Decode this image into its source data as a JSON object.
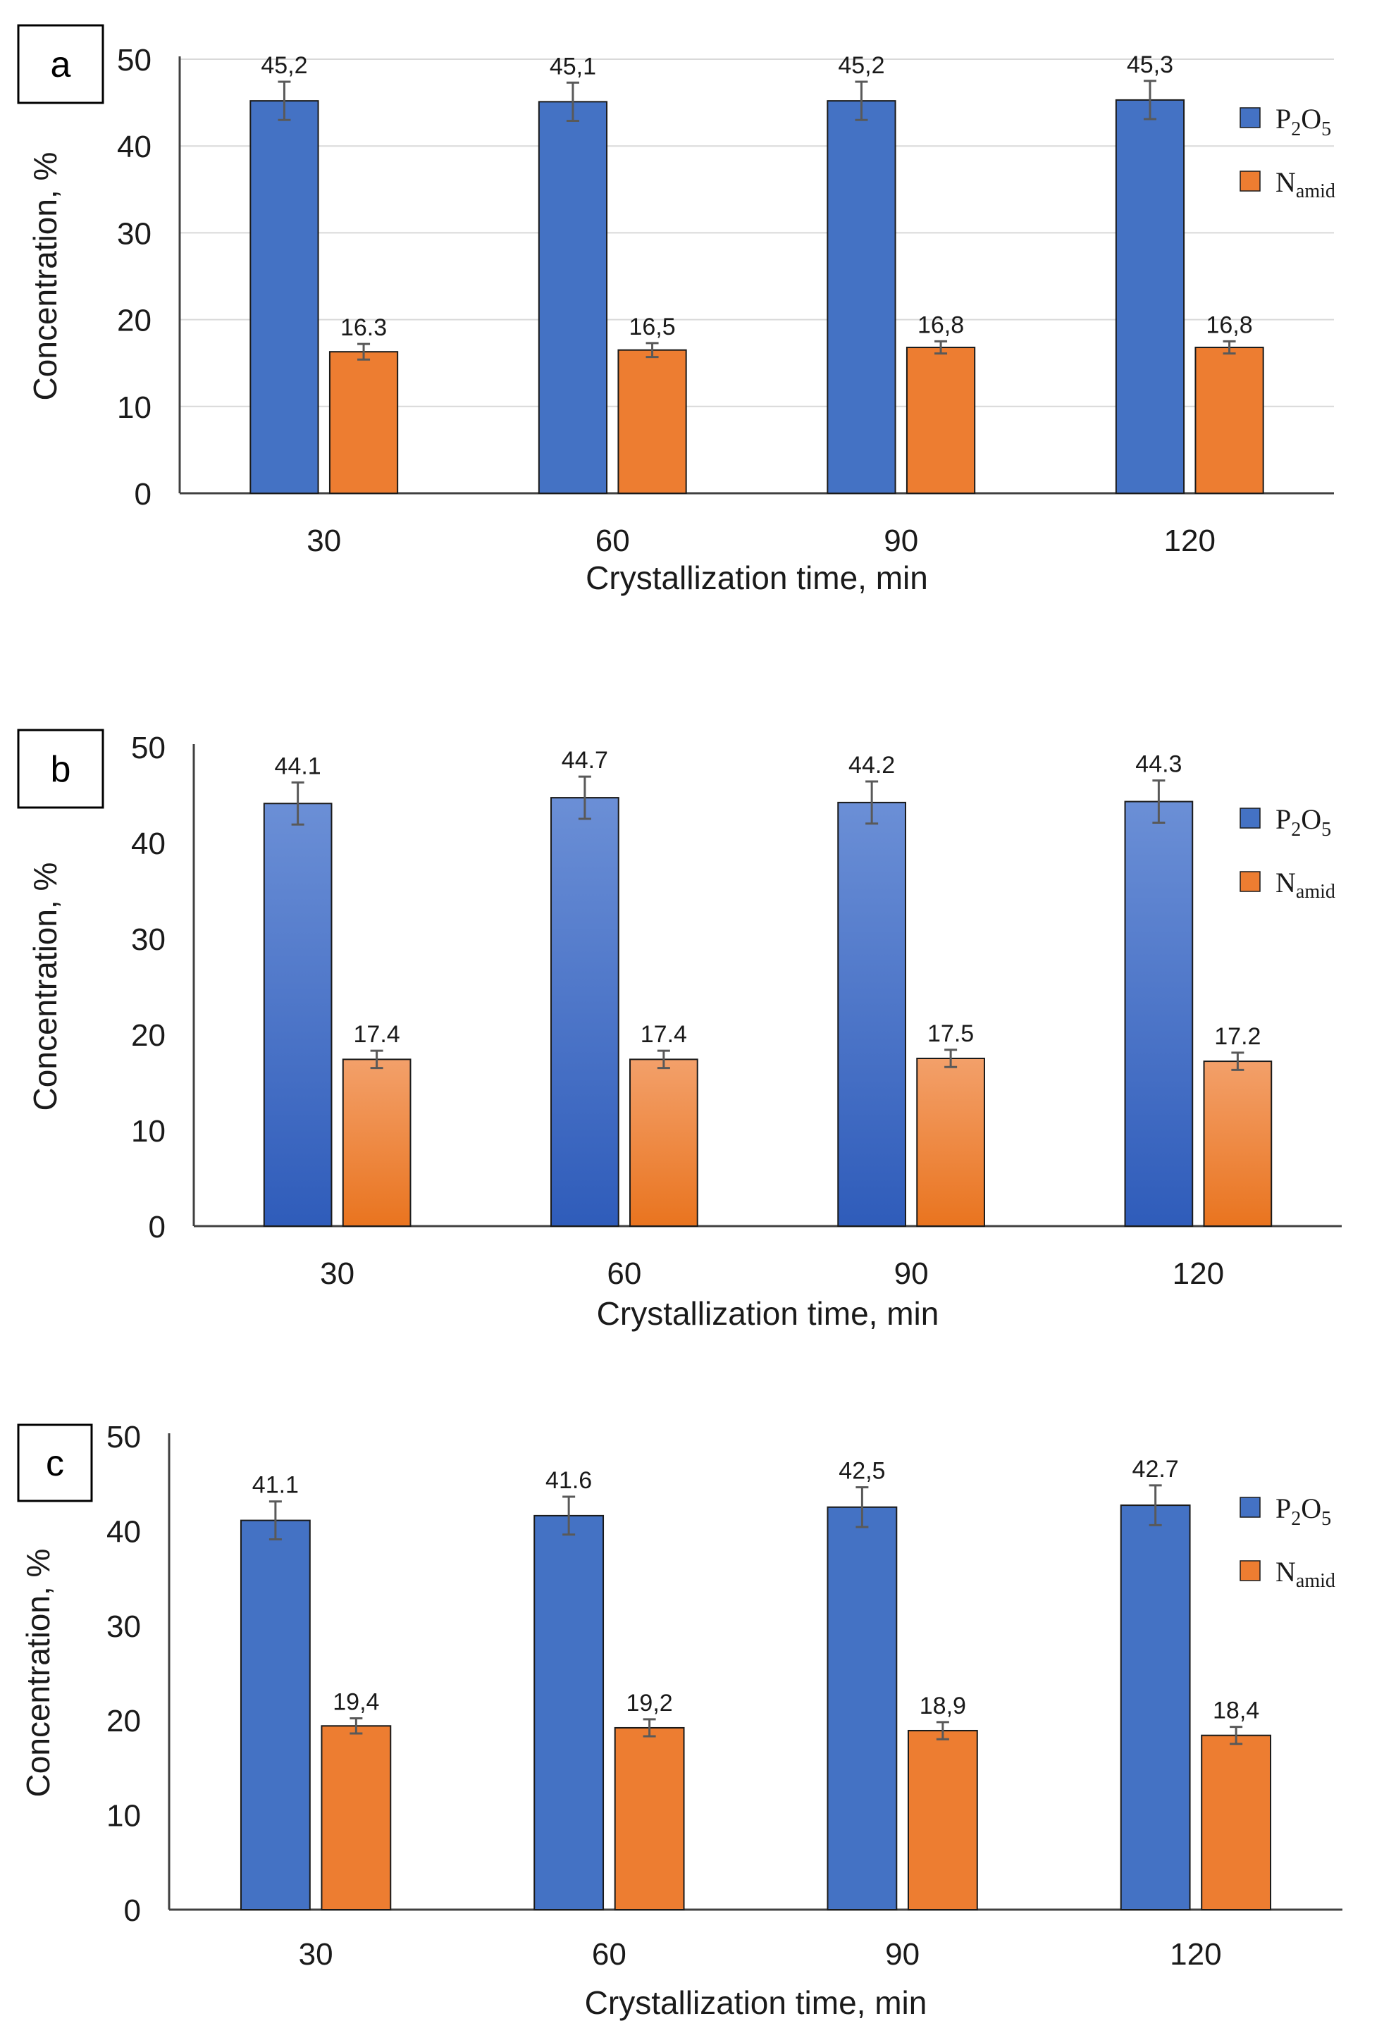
{
  "colors": {
    "p2o5": "#4472C4",
    "namid": "#ED7D31",
    "gridline": "#d9d9d9",
    "axis": "#404040",
    "errorbar": "#595959"
  },
  "chart_data": [
    {
      "panel_label": "a",
      "type": "bar",
      "style": "flat",
      "categories": [
        "30",
        "60",
        "90",
        "120"
      ],
      "xlabel": "Crystallization time, min",
      "ylabel": "Concentration, %",
      "ylim": [
        0,
        50
      ],
      "yticks": [
        "0",
        "10",
        "20",
        "30",
        "40",
        "50"
      ],
      "grid": true,
      "legend_position": "right",
      "series": [
        {
          "key": "p2o5",
          "values": [
            45.2,
            45.1,
            45.2,
            45.3
          ],
          "labels": [
            "45,2",
            "45,1",
            "45,2",
            "45,3"
          ],
          "errors": [
            2.2,
            2.2,
            2.2,
            2.2
          ]
        },
        {
          "key": "namid",
          "values": [
            16.3,
            16.5,
            16.8,
            16.8
          ],
          "labels": [
            "16.3",
            "16,5",
            "16,8",
            "16,8"
          ],
          "errors": [
            0.9,
            0.8,
            0.7,
            0.7
          ]
        }
      ]
    },
    {
      "panel_label": "b",
      "type": "bar",
      "style": "gradient",
      "categories": [
        "30",
        "60",
        "90",
        "120"
      ],
      "xlabel": "Crystallization time, min",
      "ylabel": "Concentration, %",
      "ylim": [
        0,
        50
      ],
      "yticks": [
        "0",
        "10",
        "20",
        "30",
        "40",
        "50"
      ],
      "grid": false,
      "legend_position": "right",
      "series": [
        {
          "key": "p2o5",
          "values": [
            44.1,
            44.7,
            44.2,
            44.3
          ],
          "labels": [
            "44.1",
            "44.7",
            "44.2",
            "44.3"
          ],
          "errors": [
            2.2,
            2.2,
            2.2,
            2.2
          ]
        },
        {
          "key": "namid",
          "values": [
            17.4,
            17.4,
            17.5,
            17.2
          ],
          "labels": [
            "17.4",
            "17.4",
            "17.5",
            "17.2"
          ],
          "errors": [
            0.9,
            0.9,
            0.9,
            0.9
          ]
        }
      ]
    },
    {
      "panel_label": "c",
      "type": "bar",
      "style": "flat",
      "categories": [
        "30",
        "60",
        "90",
        "120"
      ],
      "xlabel": "Crystallization time, min",
      "ylabel": "Concentration, %",
      "ylim": [
        0,
        50
      ],
      "yticks": [
        "0",
        "10",
        "20",
        "30",
        "40",
        "50"
      ],
      "grid": false,
      "legend_position": "right",
      "series": [
        {
          "key": "p2o5",
          "values": [
            41.1,
            41.6,
            42.5,
            42.7
          ],
          "labels": [
            "41.1",
            "41.6",
            "42,5",
            "42.7"
          ],
          "errors": [
            2.0,
            2.0,
            2.1,
            2.1
          ]
        },
        {
          "key": "namid",
          "values": [
            19.4,
            19.2,
            18.9,
            18.4
          ],
          "labels": [
            "19,4",
            "19,2",
            "18,9",
            "18,4"
          ],
          "errors": [
            0.8,
            0.9,
            0.9,
            0.9
          ]
        }
      ]
    }
  ],
  "legend": {
    "p2o5": {
      "main_1": "P",
      "sub_1": "2",
      "main_2": "O",
      "sub_2": "5"
    },
    "namid": {
      "main": "N",
      "sub": "amid"
    }
  }
}
